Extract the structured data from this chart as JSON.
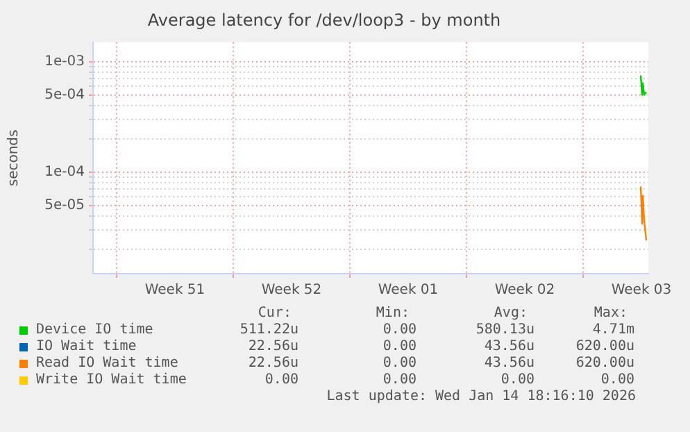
{
  "chart_data": {
    "type": "line",
    "title": "Average latency for /dev/loop3 - by month",
    "ylabel": "seconds",
    "log": "y",
    "grid": true,
    "legend": "bottom",
    "marker": "none",
    "line_style": "solid",
    "xlim": [
      "2025-12-13T14:00",
      "2026-01-15T22:00"
    ],
    "xticks": [
      {
        "value": "2025-12-15",
        "label": null
      },
      {
        "value": "2025-12-18T12:00",
        "label": "Week 51"
      },
      {
        "value": "2025-12-22",
        "label": null
      },
      {
        "value": "2025-12-25T12:00",
        "label": "Week 52"
      },
      {
        "value": "2025-12-29",
        "label": null
      },
      {
        "value": "2026-01-01T12:00",
        "label": "Week 01"
      },
      {
        "value": "2026-01-05",
        "label": null
      },
      {
        "value": "2026-01-08T12:00",
        "label": "Week 02"
      },
      {
        "value": "2026-01-12",
        "label": null
      },
      {
        "value": "2026-01-15T12:00",
        "label": "Week 03"
      }
    ],
    "ylim": [
      1.2e-05,
      0.0015
    ],
    "yticks": [
      {
        "value": 2e-05,
        "label": null
      },
      {
        "value": 3e-05,
        "label": null
      },
      {
        "value": 4e-05,
        "label": null
      },
      {
        "value": 5e-05,
        "label": "5e-05"
      },
      {
        "value": 6e-05,
        "label": null
      },
      {
        "value": 7e-05,
        "label": null
      },
      {
        "value": 8e-05,
        "label": null
      },
      {
        "value": 9e-05,
        "label": null
      },
      {
        "value": 0.0001,
        "label": "1e-04"
      },
      {
        "value": 0.0002,
        "label": null
      },
      {
        "value": 0.0003,
        "label": null
      },
      {
        "value": 0.0004,
        "label": null
      },
      {
        "value": 0.0005,
        "label": "5e-04"
      },
      {
        "value": 0.0006,
        "label": null
      },
      {
        "value": 0.0007,
        "label": null
      },
      {
        "value": 0.0008,
        "label": null
      },
      {
        "value": 0.0009,
        "label": null
      },
      {
        "value": 0.001,
        "label": "1e-03"
      }
    ],
    "x": [
      "2026-01-15T11:00",
      "2026-01-15T13:00",
      "2026-01-15T14:00",
      "2026-01-15T16:00",
      "2026-01-15T19:00"
    ],
    "series": [
      {
        "name": "Device IO time",
        "color": "#00cc00",
        "values": [
          0.00075,
          0.0005,
          0.00064,
          0.0005,
          0.00053
        ]
      },
      {
        "name": "IO Wait time",
        "color": "#0066b3",
        "values": [
          null,
          null,
          null,
          null,
          null
        ]
      },
      {
        "name": "Read IO Wait time",
        "color": "#ff8000",
        "values": [
          7.4e-05,
          3.4e-05,
          6.1e-05,
          3.6e-05,
          2.4e-05
        ]
      },
      {
        "name": "Write IO Wait time",
        "color": "#ffcc00",
        "values": [
          null,
          null,
          null,
          null,
          null
        ]
      }
    ],
    "annotations": [
      "Cur:",
      "Min:",
      "Avg:",
      "Max:",
      "511.22u",
      "0.00",
      "580.13u",
      "4.71m",
      "22.56u",
      "0.00",
      "43.56u",
      "620.00u",
      "22.56u",
      "0.00",
      "43.56u",
      "620.00u",
      "0.00",
      "0.00",
      "0.00",
      "0.00",
      "Last update: Wed Jan 14 18:16:10 2026"
    ]
  }
}
